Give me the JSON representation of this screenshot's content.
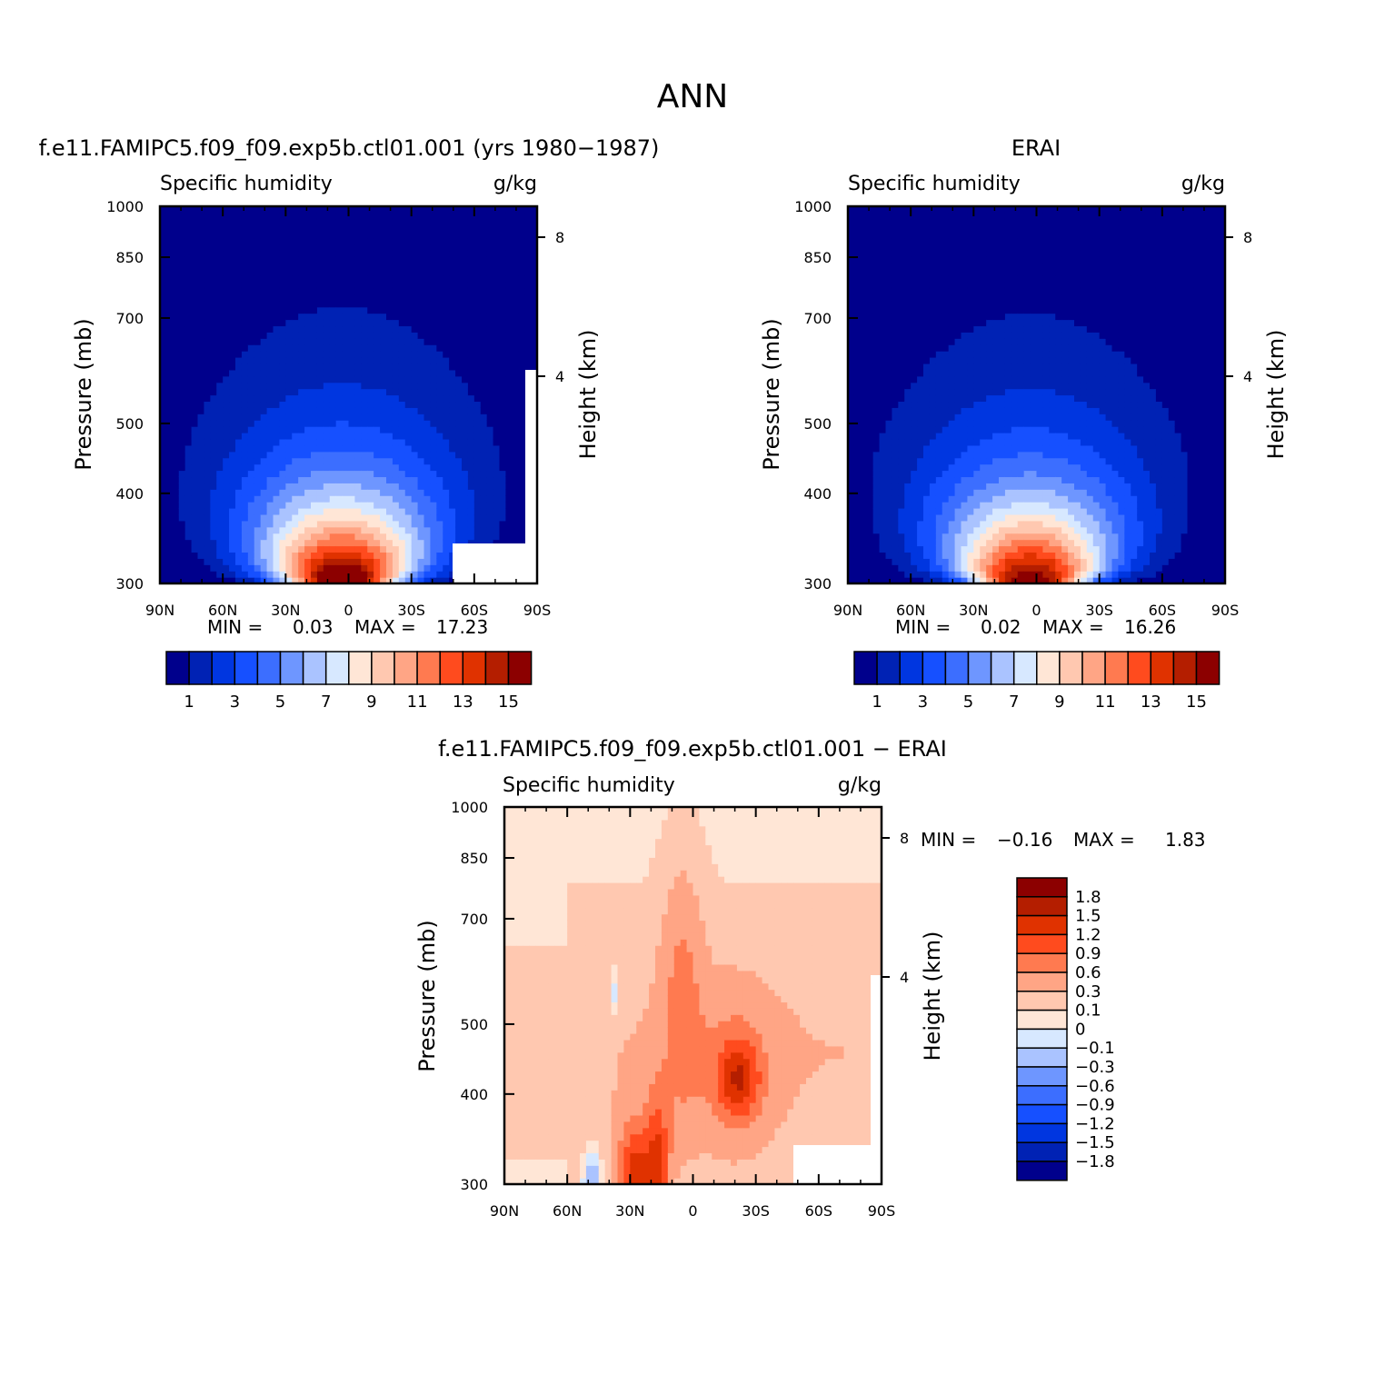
{
  "figure": {
    "title": "ANN"
  },
  "colors": {
    "abs_levels": [
      "#00008C",
      "#0022B4",
      "#0036E0",
      "#1650FF",
      "#3C6EFF",
      "#6E96FF",
      "#AAC3FF",
      "#D7E8FF",
      "#FFE6D6",
      "#FFC8B0",
      "#FFA585",
      "#FF7A50",
      "#FF4B1E",
      "#E03200",
      "#B41E00",
      "#8C0000"
    ],
    "diff_levels": [
      "#8C0000",
      "#B41E00",
      "#E03200",
      "#FF4B1E",
      "#FF7A50",
      "#FFA585",
      "#FFC8B0",
      "#FFE6D6",
      "#D7E8FF",
      "#AAC3FF",
      "#6E96FF",
      "#3C6EFF",
      "#1650FF",
      "#0036E0",
      "#0022B4",
      "#00008C"
    ]
  },
  "chart_data": [
    {
      "type": "heatmap",
      "panel": "model",
      "title": "f.e11.FAMIPC5.f09_f09.exp5b.ctl01.001 (yrs 1980−1987)",
      "left_label": "Specific humidity",
      "right_label": "g/kg",
      "ylabel": "Pressure (mb)",
      "ylabel_right": "Height (km)",
      "x_ticks": [
        "90N",
        "60N",
        "30N",
        "0",
        "30S",
        "60S",
        "90S"
      ],
      "y_ticks": [
        "300",
        "400",
        "500",
        "700",
        "850",
        "1000"
      ],
      "y_right_ticks": [
        "8",
        "4"
      ],
      "xlim": [
        90,
        -90
      ],
      "ylim": [
        1000,
        300
      ],
      "min_label": "MIN =",
      "min_value": "0.03",
      "max_label": "MAX =",
      "max_value": "17.23",
      "min": 0.03,
      "max": 17.23,
      "colorbar_labels": [
        "1",
        "3",
        "5",
        "7",
        "9",
        "11",
        "13",
        "15"
      ],
      "peak_lat": 3,
      "peak_value": 17.23,
      "upper_extent_lat": 5
    },
    {
      "type": "heatmap",
      "panel": "obs",
      "title": "ERAI",
      "left_label": "Specific humidity",
      "right_label": "g/kg",
      "ylabel": "Pressure (mb)",
      "ylabel_right": "Height (km)",
      "x_ticks": [
        "90N",
        "60N",
        "30N",
        "0",
        "30S",
        "60S",
        "90S"
      ],
      "y_ticks": [
        "300",
        "400",
        "500",
        "700",
        "850",
        "1000"
      ],
      "y_right_ticks": [
        "8",
        "4"
      ],
      "xlim": [
        90,
        -90
      ],
      "ylim": [
        1000,
        300
      ],
      "min_label": "MIN =",
      "min_value": "0.02",
      "max_label": "MAX =",
      "max_value": "16.26",
      "min": 0.02,
      "max": 16.26,
      "colorbar_labels": [
        "1",
        "3",
        "5",
        "7",
        "9",
        "11",
        "13",
        "15"
      ],
      "peak_lat": 3,
      "peak_value": 16.26,
      "upper_extent_lat": 5
    },
    {
      "type": "heatmap",
      "panel": "diff",
      "title": "f.e11.FAMIPC5.f09_f09.exp5b.ctl01.001 − ERAI",
      "left_label": "Specific humidity",
      "right_label": "g/kg",
      "ylabel": "Pressure (mb)",
      "ylabel_right": "Height (km)",
      "x_ticks": [
        "90N",
        "60N",
        "30N",
        "0",
        "30S",
        "60S",
        "90S"
      ],
      "y_ticks": [
        "300",
        "400",
        "500",
        "700",
        "850",
        "1000"
      ],
      "y_right_ticks": [
        "8",
        "4"
      ],
      "xlim": [
        90,
        -90
      ],
      "ylim": [
        1000,
        300
      ],
      "min_label": "MIN =",
      "min_value": "−0.16",
      "max_label": "MAX =",
      "max_value": "1.83",
      "min": -0.16,
      "max": 1.83,
      "colorbar_labels": [
        "1.8",
        "1.5",
        "1.2",
        "0.9",
        "0.6",
        "0.3",
        "0.1",
        "0",
        "−0.1",
        "−0.3",
        "−0.6",
        "−0.9",
        "−1.2",
        "−1.5",
        "−1.8"
      ]
    }
  ]
}
